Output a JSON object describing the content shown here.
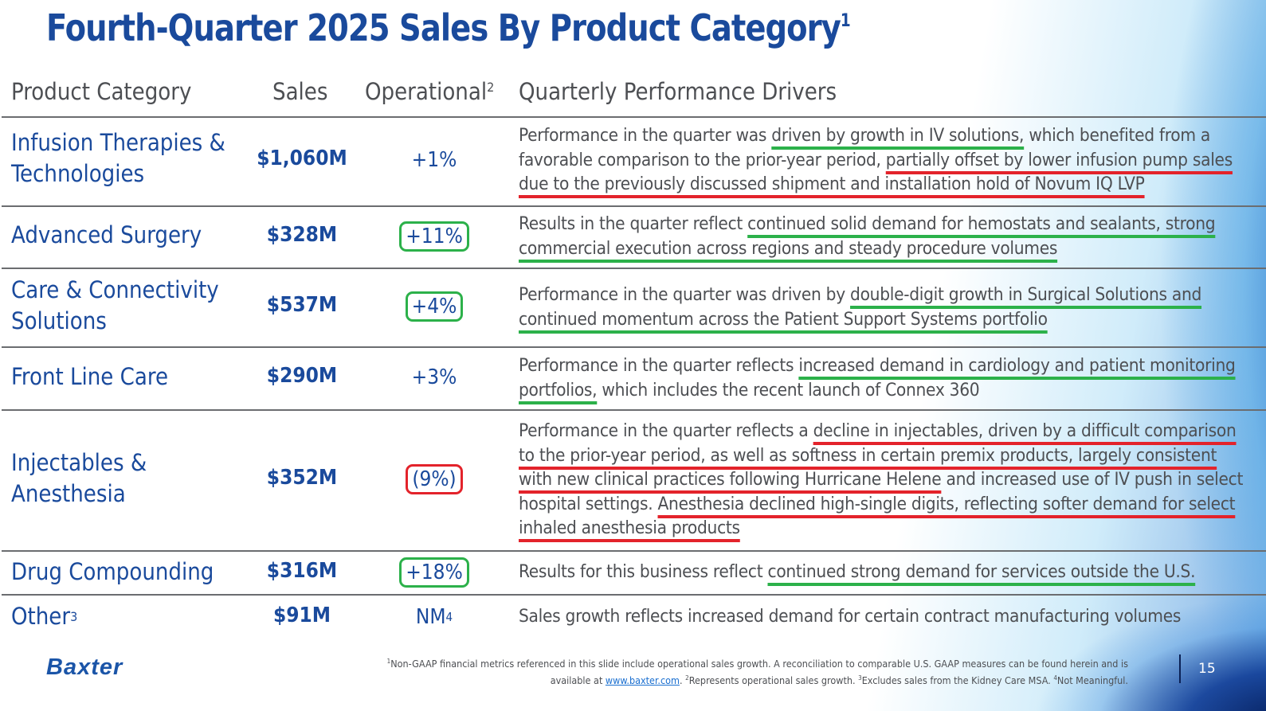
{
  "title": {
    "text": "Fourth-Quarter 2025 Sales By Product Category",
    "footnote_ref": "1"
  },
  "headers": {
    "category": "Product Category",
    "sales": "Sales",
    "operational": "Operational",
    "operational_ref": "2",
    "drivers": "Quarterly Performance Drivers"
  },
  "colors": {
    "brand_blue": "#1a4a9c",
    "positive_highlight": "#2cb14a",
    "negative_highlight": "#e3232b"
  },
  "rows": [
    {
      "category": "Infusion Therapies & Technologies",
      "category_lines": [
        "Infusion Therapies &",
        "Technologies"
      ],
      "sales": "$1,060M",
      "operational": "+1%",
      "highlight": "none",
      "driver_segments": [
        {
          "text": "Performance in the quarter was ",
          "mark": "none"
        },
        {
          "text": "driven by growth in IV solutions,",
          "mark": "green"
        },
        {
          "text": " which benefited from a favorable comparison to the prior-year period, ",
          "mark": "none"
        },
        {
          "text": "partially offset by lower infusion pump sales due to the previously discussed shipment and installation hold of Novum IQ LVP",
          "mark": "red"
        }
      ]
    },
    {
      "category": "Advanced Surgery",
      "category_lines": [
        "Advanced Surgery"
      ],
      "sales": "$328M",
      "operational": "+11%",
      "highlight": "green",
      "driver_segments": [
        {
          "text": "Results in the quarter reflect ",
          "mark": "none"
        },
        {
          "text": "continued solid demand for hemostats and sealants, strong commercial execution across regions and steady procedure volumes",
          "mark": "green"
        }
      ]
    },
    {
      "category": "Care & Connectivity Solutions",
      "category_lines": [
        "Care & Connectivity",
        "Solutions"
      ],
      "sales": "$537M",
      "operational": "+4%",
      "highlight": "green",
      "driver_segments": [
        {
          "text": "Performance in the quarter was driven by ",
          "mark": "none"
        },
        {
          "text": "double-digit growth in Surgical Solutions and continued momentum across the Patient Support Systems portfolio",
          "mark": "green"
        }
      ]
    },
    {
      "category": "Front Line Care",
      "category_lines": [
        "Front Line Care"
      ],
      "sales": "$290M",
      "operational": "+3%",
      "highlight": "none",
      "driver_segments": [
        {
          "text": "Performance in the quarter reflects ",
          "mark": "none"
        },
        {
          "text": "increased demand in cardiology and patient monitoring portfolios,",
          "mark": "green"
        },
        {
          "text": " which includes the recent launch of Connex 360",
          "mark": "none"
        }
      ]
    },
    {
      "category": "Injectables & Anesthesia",
      "category_lines": [
        "Injectables &",
        "Anesthesia"
      ],
      "sales": "$352M",
      "operational": "(9%)",
      "highlight": "red",
      "driver_segments": [
        {
          "text": "Performance in the quarter reflects a ",
          "mark": "none"
        },
        {
          "text": "decline in injectables, driven by a difficult comparison to the prior-year period, as well as softness in certain premix products, largely consistent with new clinical practices following Hurricane Helene",
          "mark": "red"
        },
        {
          "text": " and increased use of IV push in select hospital settings. ",
          "mark": "none"
        },
        {
          "text": "Anesthesia declined high-single digits, reflecting softer demand for select inhaled anesthesia products",
          "mark": "red"
        }
      ]
    },
    {
      "category": "Drug Compounding",
      "category_lines": [
        "Drug Compounding"
      ],
      "sales": "$316M",
      "operational": "+18%",
      "highlight": "green",
      "driver_segments": [
        {
          "text": "Results for this business reflect ",
          "mark": "none"
        },
        {
          "text": "continued strong demand for services outside the U.S.",
          "mark": "green"
        }
      ]
    },
    {
      "category": "Other",
      "category_ref": "3",
      "category_lines": [
        "Other"
      ],
      "sales": "$91M",
      "operational": "NM",
      "operational_ref": "4",
      "highlight": "none",
      "driver_segments": [
        {
          "text": "Sales growth reflects increased demand for certain contract manufacturing volumes",
          "mark": "none"
        }
      ]
    }
  ],
  "footer": {
    "logo": "Baxter",
    "note_1_ref": "1",
    "note_1": "Non-GAAP financial metrics referenced in this slide include operational sales growth. A reconciliation to comparable U.S. GAAP measures can be found herein and is available at ",
    "link": "www.baxter.com",
    "note_1_end": ". ",
    "note_2_ref": "2",
    "note_2": "Represents operational sales growth. ",
    "note_3_ref": "3",
    "note_3": "Excludes sales from the Kidney Care MSA. ",
    "note_4_ref": "4",
    "note_4": "Not Meaningful.",
    "page_number": "15"
  }
}
